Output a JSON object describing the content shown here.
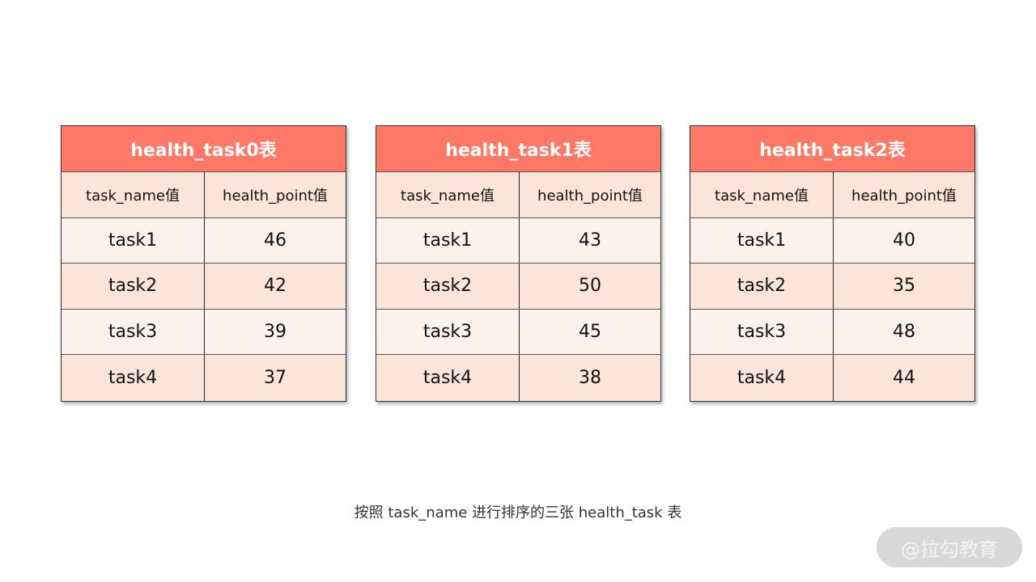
{
  "tables": [
    {
      "title": "health_task0表",
      "headers": [
        "task_name值",
        "health_point值"
      ],
      "rows": [
        [
          "task1",
          "46"
        ],
        [
          "task2",
          "42"
        ],
        [
          "task3",
          "39"
        ],
        [
          "task4",
          "37"
        ]
      ]
    },
    {
      "title": "health_task1表",
      "headers": [
        "task_name值",
        "health_point值"
      ],
      "rows": [
        [
          "task1",
          "43"
        ],
        [
          "task2",
          "50"
        ],
        [
          "task3",
          "45"
        ],
        [
          "task4",
          "38"
        ]
      ]
    },
    {
      "title": "health_task2表",
      "headers": [
        "task_name值",
        "health_point值"
      ],
      "rows": [
        [
          "task1",
          "40"
        ],
        [
          "task2",
          "35"
        ],
        [
          "task3",
          "48"
        ],
        [
          "task4",
          "44"
        ]
      ]
    }
  ],
  "caption": "按照 task_name 进行排序的三张 health_task 表",
  "watermark": "@拉勾教育",
  "colors": {
    "header": "#FF7865",
    "row_light": "#FCF1EC",
    "row_alt": "#FBE5D8"
  }
}
